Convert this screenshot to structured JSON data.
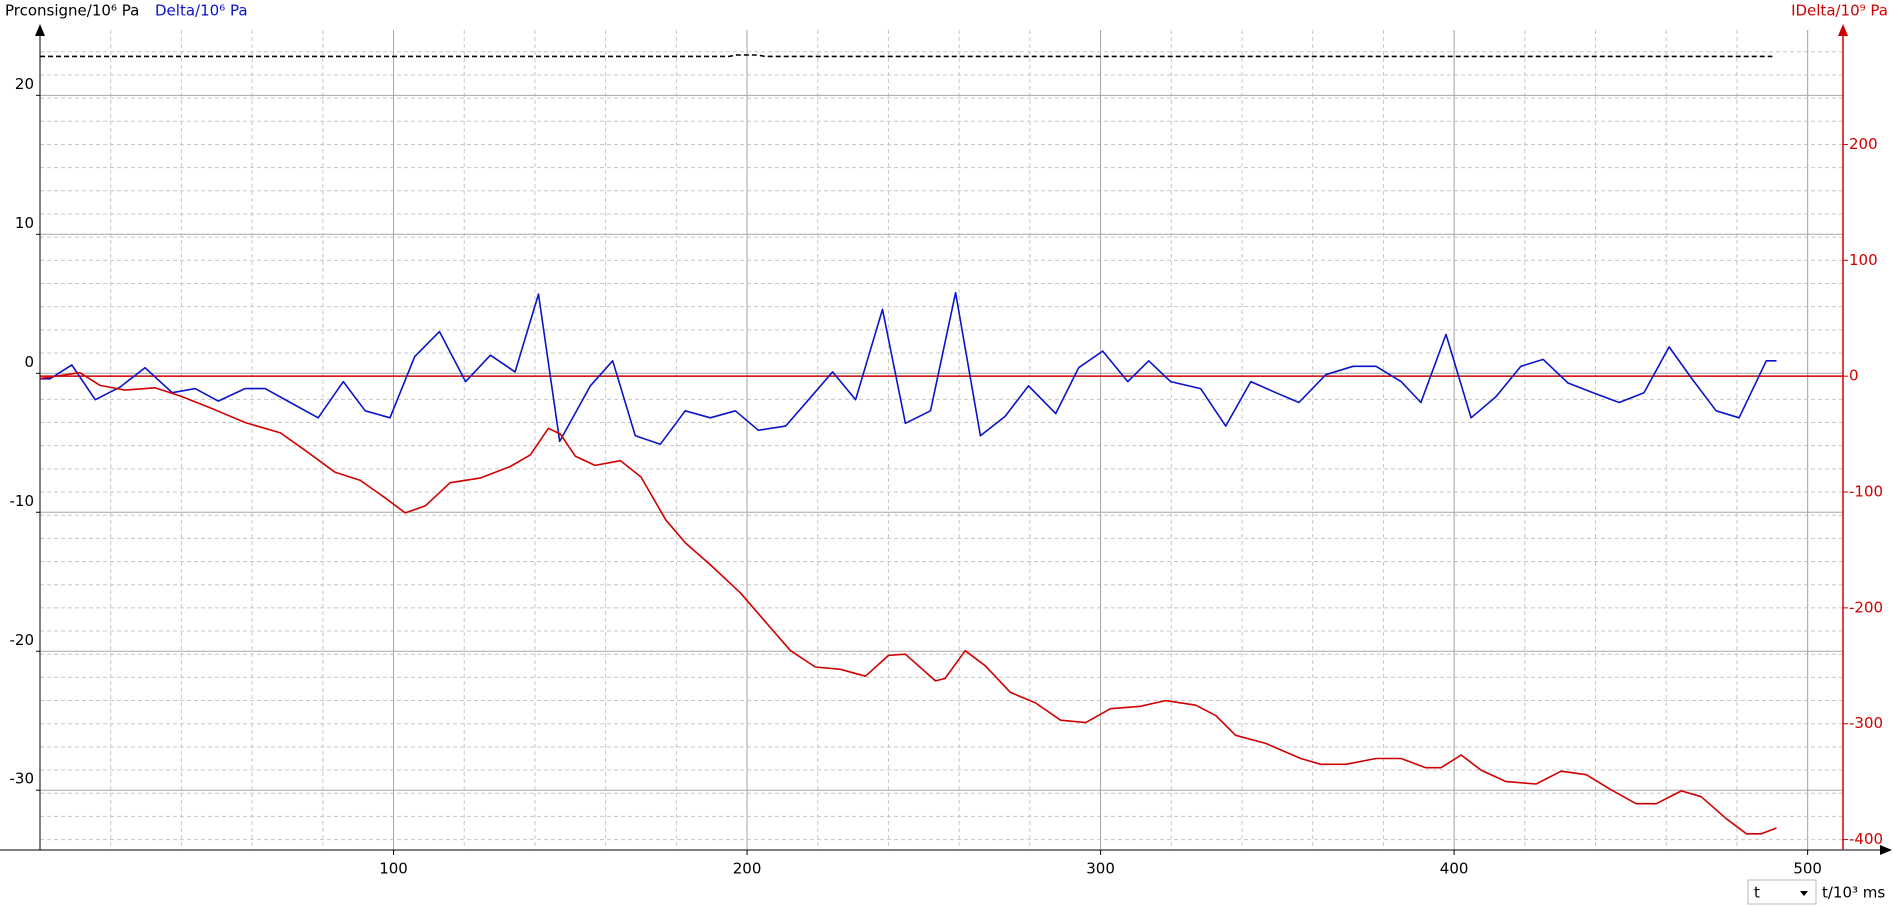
{
  "chart_data": {
    "type": "line",
    "xlabel": "t/10³ ms",
    "x_selector": "t",
    "xlim": [
      0,
      510
    ],
    "xticks": [
      100,
      200,
      300,
      400,
      500
    ],
    "ylim": [
      -34.3,
      24.7
    ],
    "yticks": [
      -30,
      -20,
      -10,
      0,
      10,
      20
    ],
    "y2lim": [
      -409,
      298.8
    ],
    "y2ticks": [
      -400,
      -300,
      -200,
      -100,
      0,
      100,
      200
    ],
    "grid": true,
    "minor_grid": {
      "x": 20,
      "y2": 20
    },
    "y2_zero_line": true,
    "series": [
      {
        "name": "Prconsigne/10⁶ Pa",
        "color": "#000000",
        "dashed": true,
        "x": [
          0,
          195,
          197,
          203,
          205,
          490
        ],
        "values": [
          22.8,
          22.8,
          22.9,
          22.9,
          22.8,
          22.8
        ]
      },
      {
        "name": "Delta/10⁶ Pa",
        "color": "#0a14c8",
        "x": [
          0,
          2.8,
          9,
          15.6,
          22.6,
          29.7,
          37.4,
          43.9,
          50.4,
          58,
          63.7,
          70.8,
          78.7,
          85.8,
          92,
          99,
          106,
          113,
          120.4,
          127.4,
          134.4,
          141,
          147,
          155.7,
          162,
          168.4,
          175.5,
          182.5,
          189.6,
          196.7,
          203.2,
          210.9,
          217.4,
          224.2,
          230.7,
          238.3,
          244.8,
          251.9,
          259,
          266,
          273,
          279.6,
          287.3,
          293.8,
          300.6,
          307.7,
          313.6,
          319.8,
          328.3,
          335.4,
          342.5,
          349.6,
          356.1,
          363.7,
          371.4,
          377.9,
          385,
          390.6,
          397.7,
          404.8,
          411.8,
          418.9,
          425.2,
          432.2,
          439.3,
          446.7,
          453.7,
          460.8,
          467,
          474.1,
          480.6,
          488.3,
          491.2
        ],
        "values": [
          -0.4,
          -0.4,
          0.6,
          -1.9,
          -1.0,
          0.4,
          -1.4,
          -1.1,
          -2.0,
          -1.1,
          -1.1,
          -2.1,
          -3.2,
          -0.6,
          -2.7,
          -3.2,
          1.2,
          3.0,
          -0.6,
          1.3,
          0.1,
          5.7,
          -4.9,
          -0.9,
          0.9,
          -4.5,
          -5.1,
          -2.7,
          -3.2,
          -2.7,
          -4.1,
          -3.8,
          -1.9,
          0.1,
          -1.9,
          4.6,
          -3.6,
          -2.7,
          5.8,
          -4.5,
          -3.1,
          -0.9,
          -2.9,
          0.4,
          1.6,
          -0.6,
          0.9,
          -0.6,
          -1.1,
          -3.8,
          -0.6,
          -1.4,
          -2.1,
          -0.1,
          0.5,
          0.5,
          -0.6,
          -2.1,
          2.8,
          -3.2,
          -1.7,
          0.5,
          1.0,
          -0.7,
          -1.4,
          -2.1,
          -1.4,
          1.9,
          -0.3,
          -2.7,
          -3.2,
          0.9,
          0.9
        ]
      },
      {
        "name": "IDelta/10⁹ Pa",
        "color": "#d00000",
        "axis": "y2",
        "x": [
          0,
          11.3,
          17,
          24,
          32.5,
          39.6,
          49.5,
          58,
          68,
          75,
          83.5,
          90.6,
          97.6,
          103.3,
          109,
          116,
          124.5,
          133,
          138.7,
          143.8,
          147.2,
          151.4,
          157,
          164.2,
          170,
          177,
          182.6,
          189.7,
          198.1,
          205.2,
          212.3,
          219.3,
          226.4,
          233.5,
          240,
          244.8,
          253.3,
          256,
          261.7,
          267.4,
          274.5,
          281.6,
          288.7,
          295.8,
          302.8,
          311.3,
          318.4,
          326.9,
          332.6,
          338.2,
          346.7,
          356.6,
          362.3,
          369.4,
          377.9,
          385,
          392,
          396.3,
          402,
          407.6,
          414.7,
          423.2,
          430.3,
          437.4,
          444.4,
          451.5,
          457.2,
          464.3,
          469.9,
          477,
          482.7,
          486.9,
          491.2
        ],
        "values": [
          -2,
          3,
          -8,
          -12,
          -10,
          -17,
          -29,
          -40,
          -49,
          -64,
          -83,
          -90,
          -105,
          -118,
          -112,
          -92,
          -88,
          -78,
          -68,
          -45,
          -50,
          -69,
          -77,
          -73,
          -87,
          -124,
          -144,
          -163,
          -187,
          -212,
          -237,
          -251,
          -253,
          -259,
          -241,
          -240,
          -263,
          -261,
          -237,
          -250,
          -273,
          -282,
          -297,
          -299,
          -287,
          -285,
          -280,
          -284,
          -293,
          -310,
          -317,
          -330,
          -335,
          -335,
          -330,
          -330,
          -338,
          -338,
          -327,
          -340,
          -350,
          -352,
          -341,
          -344,
          -357,
          -369,
          -369,
          -358,
          -363,
          -382,
          -395,
          -395,
          -390
        ]
      }
    ]
  }
}
